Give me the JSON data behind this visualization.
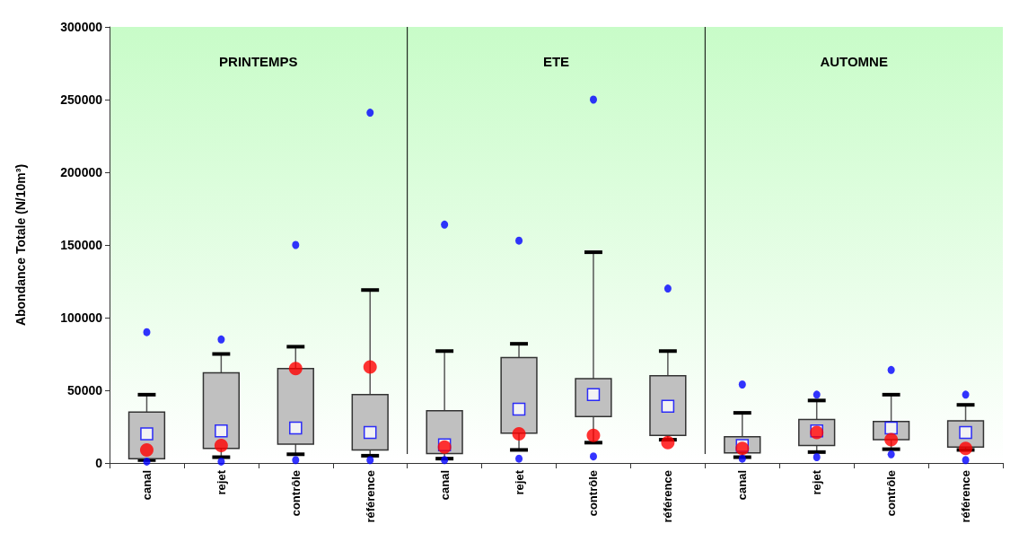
{
  "chart_data": {
    "type": "box",
    "ylabel": "Abondance Totale (N/10m³)",
    "categories": [
      "canal",
      "rejet",
      "contrôle",
      "référence",
      "canal",
      "rejet",
      "contrôle",
      "référence",
      "canal",
      "rejet",
      "contrôle",
      "référence"
    ],
    "ylim": [
      0,
      300000
    ],
    "yticks": [
      0,
      50000,
      100000,
      150000,
      200000,
      250000,
      300000
    ],
    "grid": false,
    "annotations": [
      "PRINTEMPS",
      "ETE",
      "AUTOMNE"
    ],
    "series": [
      {
        "color": "#c0c0c0",
        "boxes": [
          {
            "low": 2000,
            "q1": 3000,
            "median": null,
            "q3": 35000,
            "high": 47000,
            "mean": 20000,
            "outliers": [
              1000,
              90000
            ]
          },
          {
            "low": 4000,
            "q1": 10000,
            "median": null,
            "q3": 62000,
            "high": 75000,
            "mean": 22000,
            "outliers": [
              1000,
              85000
            ]
          },
          {
            "low": 6000,
            "q1": 13000,
            "median": null,
            "q3": 65000,
            "high": 80000,
            "mean": 24000,
            "outliers": [
              2000,
              150000
            ]
          },
          {
            "low": 5000,
            "q1": 9000,
            "median": null,
            "q3": 47000,
            "high": 119000,
            "mean": 21000,
            "outliers": [
              2000,
              241000
            ]
          },
          {
            "low": 3000,
            "q1": 6500,
            "median": null,
            "q3": 36000,
            "high": 77000,
            "mean": 12500,
            "outliers": [
              2000,
              164000
            ]
          },
          {
            "low": 9000,
            "q1": 20500,
            "median": null,
            "q3": 72500,
            "high": 82000,
            "mean": 37000,
            "outliers": [
              3000,
              153000
            ]
          },
          {
            "low": 14000,
            "q1": 32000,
            "median": null,
            "q3": 58000,
            "high": 145000,
            "mean": 47000,
            "outliers": [
              4500,
              250000
            ]
          },
          {
            "low": 16000,
            "q1": 19000,
            "median": null,
            "q3": 60000,
            "high": 77000,
            "mean": 39000,
            "outliers": [
              120000
            ]
          },
          {
            "low": 4000,
            "q1": 7000,
            "median": null,
            "q3": 18000,
            "high": 34500,
            "mean": 12000,
            "outliers": [
              3000,
              54000
            ]
          },
          {
            "low": 7500,
            "q1": 12000,
            "median": null,
            "q3": 30000,
            "high": 43000,
            "mean": 22000,
            "outliers": [
              4000,
              47000
            ]
          },
          {
            "low": 9500,
            "q1": 16000,
            "median": null,
            "q3": 28500,
            "high": 47000,
            "mean": 24000,
            "outliers": [
              6000,
              64000
            ]
          },
          {
            "low": 9000,
            "q1": 11000,
            "median": null,
            "q3": 29000,
            "high": 40000,
            "mean": 21000,
            "outliers": [
              2000,
              47000
            ]
          }
        ]
      },
      {
        "type": "scatter",
        "color": "#ff0000",
        "values": [
          9000,
          12000,
          65000,
          66000,
          11000,
          20000,
          19000,
          14000,
          10000,
          21000,
          16000,
          10000
        ]
      }
    ]
  }
}
